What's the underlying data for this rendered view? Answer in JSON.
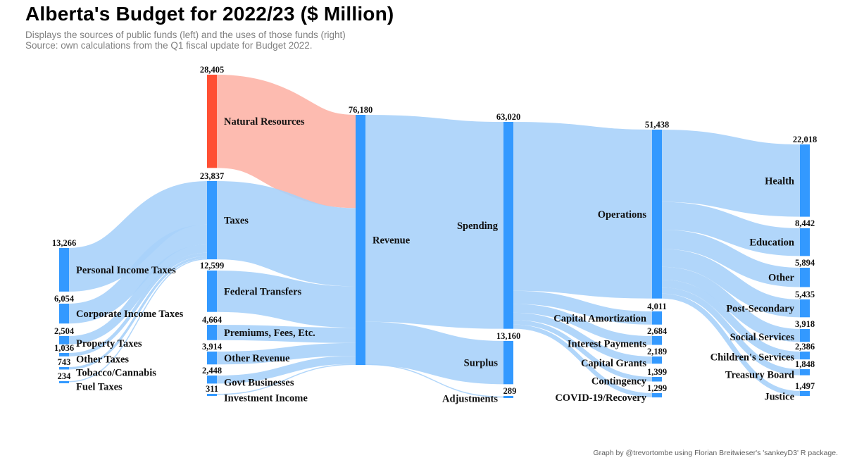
{
  "title": "Alberta's Budget for 2022/23 ($ Million)",
  "subtitle_line1": "Displays the sources of public funds (left) and the uses of those funds (right)",
  "subtitle_line2": "Source: own calculations from the Q1 fiscal update for Budget 2022.",
  "credit": "Graph by @trevortombe using Florian Breitwieser's 'sankeyD3' R package.",
  "colors": {
    "node": "#3399ff",
    "link": "#a9d1fa",
    "highlight_node": "#ff4f33",
    "highlight_link": "#fdb7ac"
  },
  "chart_data": {
    "type": "sankey",
    "units": "$ Million",
    "nodes": [
      {
        "id": "pit",
        "name": "Personal Income Taxes",
        "value": 13266,
        "column": 0
      },
      {
        "id": "cit",
        "name": "Corporate Income Taxes",
        "value": 6054,
        "column": 0
      },
      {
        "id": "prop",
        "name": "Property Taxes",
        "value": 2504,
        "column": 0
      },
      {
        "id": "othtax",
        "name": "Other Taxes",
        "value": 1036,
        "column": 0
      },
      {
        "id": "tob",
        "name": "Tobacco/Cannabis",
        "value": 743,
        "column": 0
      },
      {
        "id": "fuel",
        "name": "Fuel Taxes",
        "value": 234,
        "column": 0
      },
      {
        "id": "nr",
        "name": "Natural Resources",
        "value": 28405,
        "column": 1,
        "highlight": true
      },
      {
        "id": "taxes",
        "name": "Taxes",
        "value": 23837,
        "column": 1
      },
      {
        "id": "fed",
        "name": "Federal Transfers",
        "value": 12599,
        "column": 1
      },
      {
        "id": "prem",
        "name": "Premiums, Fees, Etc.",
        "value": 4664,
        "column": 1
      },
      {
        "id": "othrev",
        "name": "Other Revenue",
        "value": 3914,
        "column": 1
      },
      {
        "id": "gbe",
        "name": "Govt Businesses",
        "value": 2448,
        "column": 1
      },
      {
        "id": "inv",
        "name": "Investment Income",
        "value": 311,
        "column": 1
      },
      {
        "id": "rev",
        "name": "Revenue",
        "value": 76180,
        "column": 2
      },
      {
        "id": "spend",
        "name": "Spending",
        "value": 63020,
        "column": 3
      },
      {
        "id": "surplus",
        "name": "Surplus",
        "value": 13160,
        "column": 3
      },
      {
        "id": "adj",
        "name": "Adjustments",
        "value": 289,
        "column": 3
      },
      {
        "id": "ops",
        "name": "Operations",
        "value": 51438,
        "column": 4
      },
      {
        "id": "capam",
        "name": "Capital Amortization",
        "value": 4011,
        "column": 4
      },
      {
        "id": "intpay",
        "name": "Interest Payments",
        "value": 2684,
        "column": 4
      },
      {
        "id": "capgr",
        "name": "Capital Grants",
        "value": 2189,
        "column": 4
      },
      {
        "id": "cont",
        "name": "Contingency",
        "value": 1399,
        "column": 4
      },
      {
        "id": "covid",
        "name": "COVID-19/Recovery",
        "value": 1299,
        "column": 4
      },
      {
        "id": "health",
        "name": "Health",
        "value": 22018,
        "column": 5
      },
      {
        "id": "edu",
        "name": "Education",
        "value": 8442,
        "column": 5
      },
      {
        "id": "other",
        "name": "Other",
        "value": 5894,
        "column": 5
      },
      {
        "id": "postsec",
        "name": "Post-Secondary",
        "value": 5435,
        "column": 5
      },
      {
        "id": "social",
        "name": "Social Services",
        "value": 3918,
        "column": 5
      },
      {
        "id": "child",
        "name": "Children's Services",
        "value": 2386,
        "column": 5
      },
      {
        "id": "treas",
        "name": "Treasury Board",
        "value": 1848,
        "column": 5
      },
      {
        "id": "justice",
        "name": "Justice",
        "value": 1497,
        "column": 5
      }
    ],
    "value_labels": [
      {
        "node": "pit",
        "text": "13,266"
      },
      {
        "node": "cit",
        "text": "6,054"
      },
      {
        "node": "prop",
        "text": "2,504"
      },
      {
        "node": "othtax",
        "text": "1,036"
      },
      {
        "node": "tob",
        "text": "743"
      },
      {
        "node": "fuel",
        "text": "234"
      },
      {
        "node": "nr",
        "text": "28,405"
      },
      {
        "node": "taxes",
        "text": "23,837"
      },
      {
        "node": "fed",
        "text": "12,599"
      },
      {
        "node": "prem",
        "text": "4,664"
      },
      {
        "node": "othrev",
        "text": "3,914"
      },
      {
        "node": "gbe",
        "text": "2,448"
      },
      {
        "node": "inv",
        "text": "311"
      },
      {
        "node": "rev",
        "text": "76,180"
      },
      {
        "node": "spend",
        "text": "63,020"
      },
      {
        "node": "surplus",
        "text": "13,160"
      },
      {
        "node": "adj",
        "text": "289"
      },
      {
        "node": "ops",
        "text": "51,438"
      },
      {
        "node": "capam",
        "text": "4,011"
      },
      {
        "node": "intpay",
        "text": "2,684"
      },
      {
        "node": "capgr",
        "text": "2,189"
      },
      {
        "node": "cont",
        "text": "1,399"
      },
      {
        "node": "covid",
        "text": "1,299"
      },
      {
        "node": "health",
        "text": "22,018"
      },
      {
        "node": "edu",
        "text": "8,442"
      },
      {
        "node": "other",
        "text": "5,894"
      },
      {
        "node": "postsec",
        "text": "5,435"
      },
      {
        "node": "social",
        "text": "3,918"
      },
      {
        "node": "child",
        "text": "2,386"
      },
      {
        "node": "treas",
        "text": "1,848"
      },
      {
        "node": "justice",
        "text": "1,497"
      }
    ],
    "links": [
      {
        "source": "pit",
        "target": "taxes",
        "value": 13266
      },
      {
        "source": "cit",
        "target": "taxes",
        "value": 6054
      },
      {
        "source": "prop",
        "target": "taxes",
        "value": 2504
      },
      {
        "source": "othtax",
        "target": "taxes",
        "value": 1036
      },
      {
        "source": "tob",
        "target": "taxes",
        "value": 743
      },
      {
        "source": "fuel",
        "target": "taxes",
        "value": 234
      },
      {
        "source": "nr",
        "target": "rev",
        "value": 28405
      },
      {
        "source": "taxes",
        "target": "rev",
        "value": 23837
      },
      {
        "source": "fed",
        "target": "rev",
        "value": 12599
      },
      {
        "source": "prem",
        "target": "rev",
        "value": 4664
      },
      {
        "source": "othrev",
        "target": "rev",
        "value": 3914
      },
      {
        "source": "gbe",
        "target": "rev",
        "value": 2448
      },
      {
        "source": "inv",
        "target": "rev",
        "value": 311
      },
      {
        "source": "rev",
        "target": "spend",
        "value": 63020
      },
      {
        "source": "rev",
        "target": "surplus",
        "value": 13160
      },
      {
        "source": "adj",
        "target": "rev",
        "value": 289
      },
      {
        "source": "spend",
        "target": "ops",
        "value": 51438
      },
      {
        "source": "spend",
        "target": "capam",
        "value": 4011
      },
      {
        "source": "spend",
        "target": "intpay",
        "value": 2684
      },
      {
        "source": "spend",
        "target": "capgr",
        "value": 2189
      },
      {
        "source": "spend",
        "target": "cont",
        "value": 1399
      },
      {
        "source": "spend",
        "target": "covid",
        "value": 1299
      },
      {
        "source": "ops",
        "target": "health",
        "value": 22018
      },
      {
        "source": "ops",
        "target": "edu",
        "value": 8442
      },
      {
        "source": "ops",
        "target": "other",
        "value": 5894
      },
      {
        "source": "ops",
        "target": "postsec",
        "value": 5435
      },
      {
        "source": "ops",
        "target": "social",
        "value": 3918
      },
      {
        "source": "ops",
        "target": "child",
        "value": 2386
      },
      {
        "source": "ops",
        "target": "treas",
        "value": 1848
      },
      {
        "source": "ops",
        "target": "justice",
        "value": 1497
      }
    ]
  }
}
